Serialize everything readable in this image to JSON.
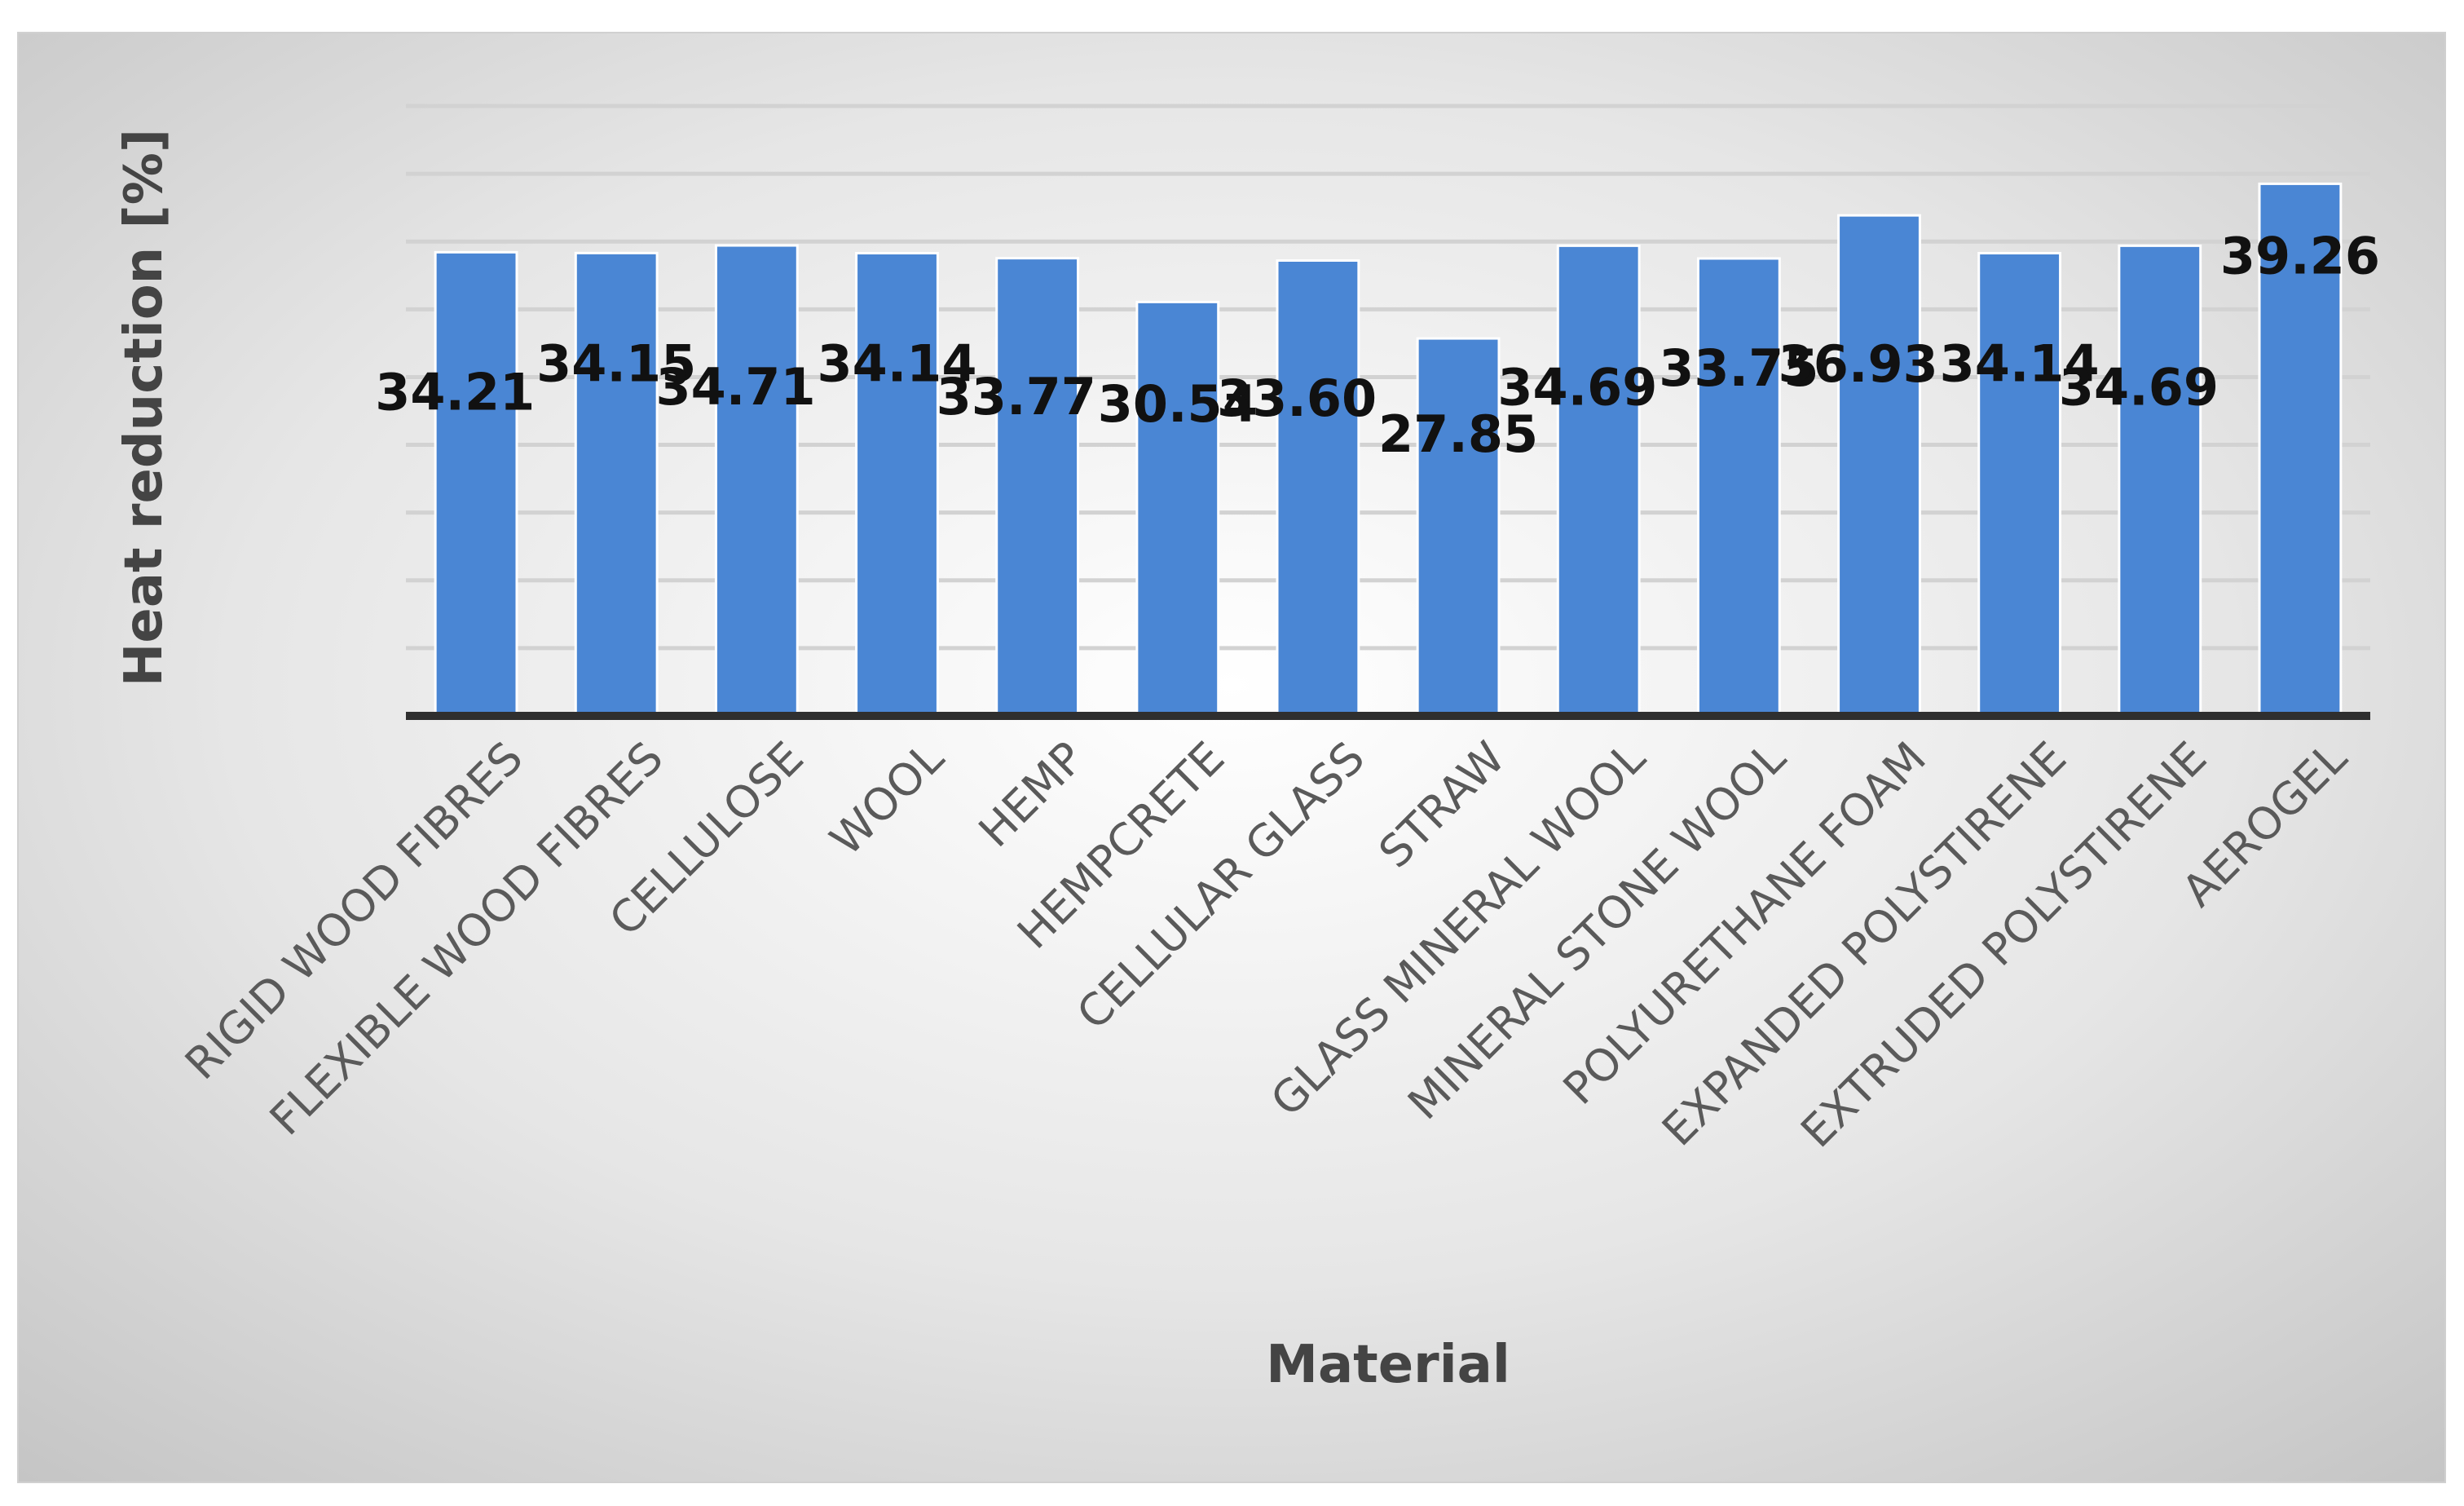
{
  "chart_data": {
    "type": "bar",
    "title": "",
    "xlabel": "Material",
    "ylabel": "Heat reduction [%]",
    "ylim": [
      0,
      45
    ],
    "gridlines": true,
    "legend": "none",
    "bar_color": "#4a86d4",
    "categories": [
      "RIGID WOOD FIBRES",
      "FLEXIBLE WOOD FIBRES",
      "CELLULOSE",
      "WOOL",
      "HEMP",
      "HEMPCRETE",
      "CELLULAR GLASS",
      "STRAW",
      "GLASS MINERAL WOOL",
      "MINERAL STONE WOOL",
      "POLYURETHANE FOAM",
      "EXPANDED POLYSTIRENE",
      "EXTRUDED POLYSTIRENE",
      "AEROGEL"
    ],
    "values": [
      34.21,
      34.15,
      34.71,
      34.14,
      33.77,
      30.54,
      33.6,
      27.85,
      34.69,
      33.75,
      36.93,
      34.14,
      34.69,
      39.26
    ],
    "data_labels": [
      "34.21",
      "34.15",
      "34.71",
      "34.14",
      "33.77",
      "30.54",
      "33.60",
      "27.85",
      "34.69",
      "33.75",
      "36.93",
      "34.14",
      "34.69",
      "39.26"
    ]
  }
}
